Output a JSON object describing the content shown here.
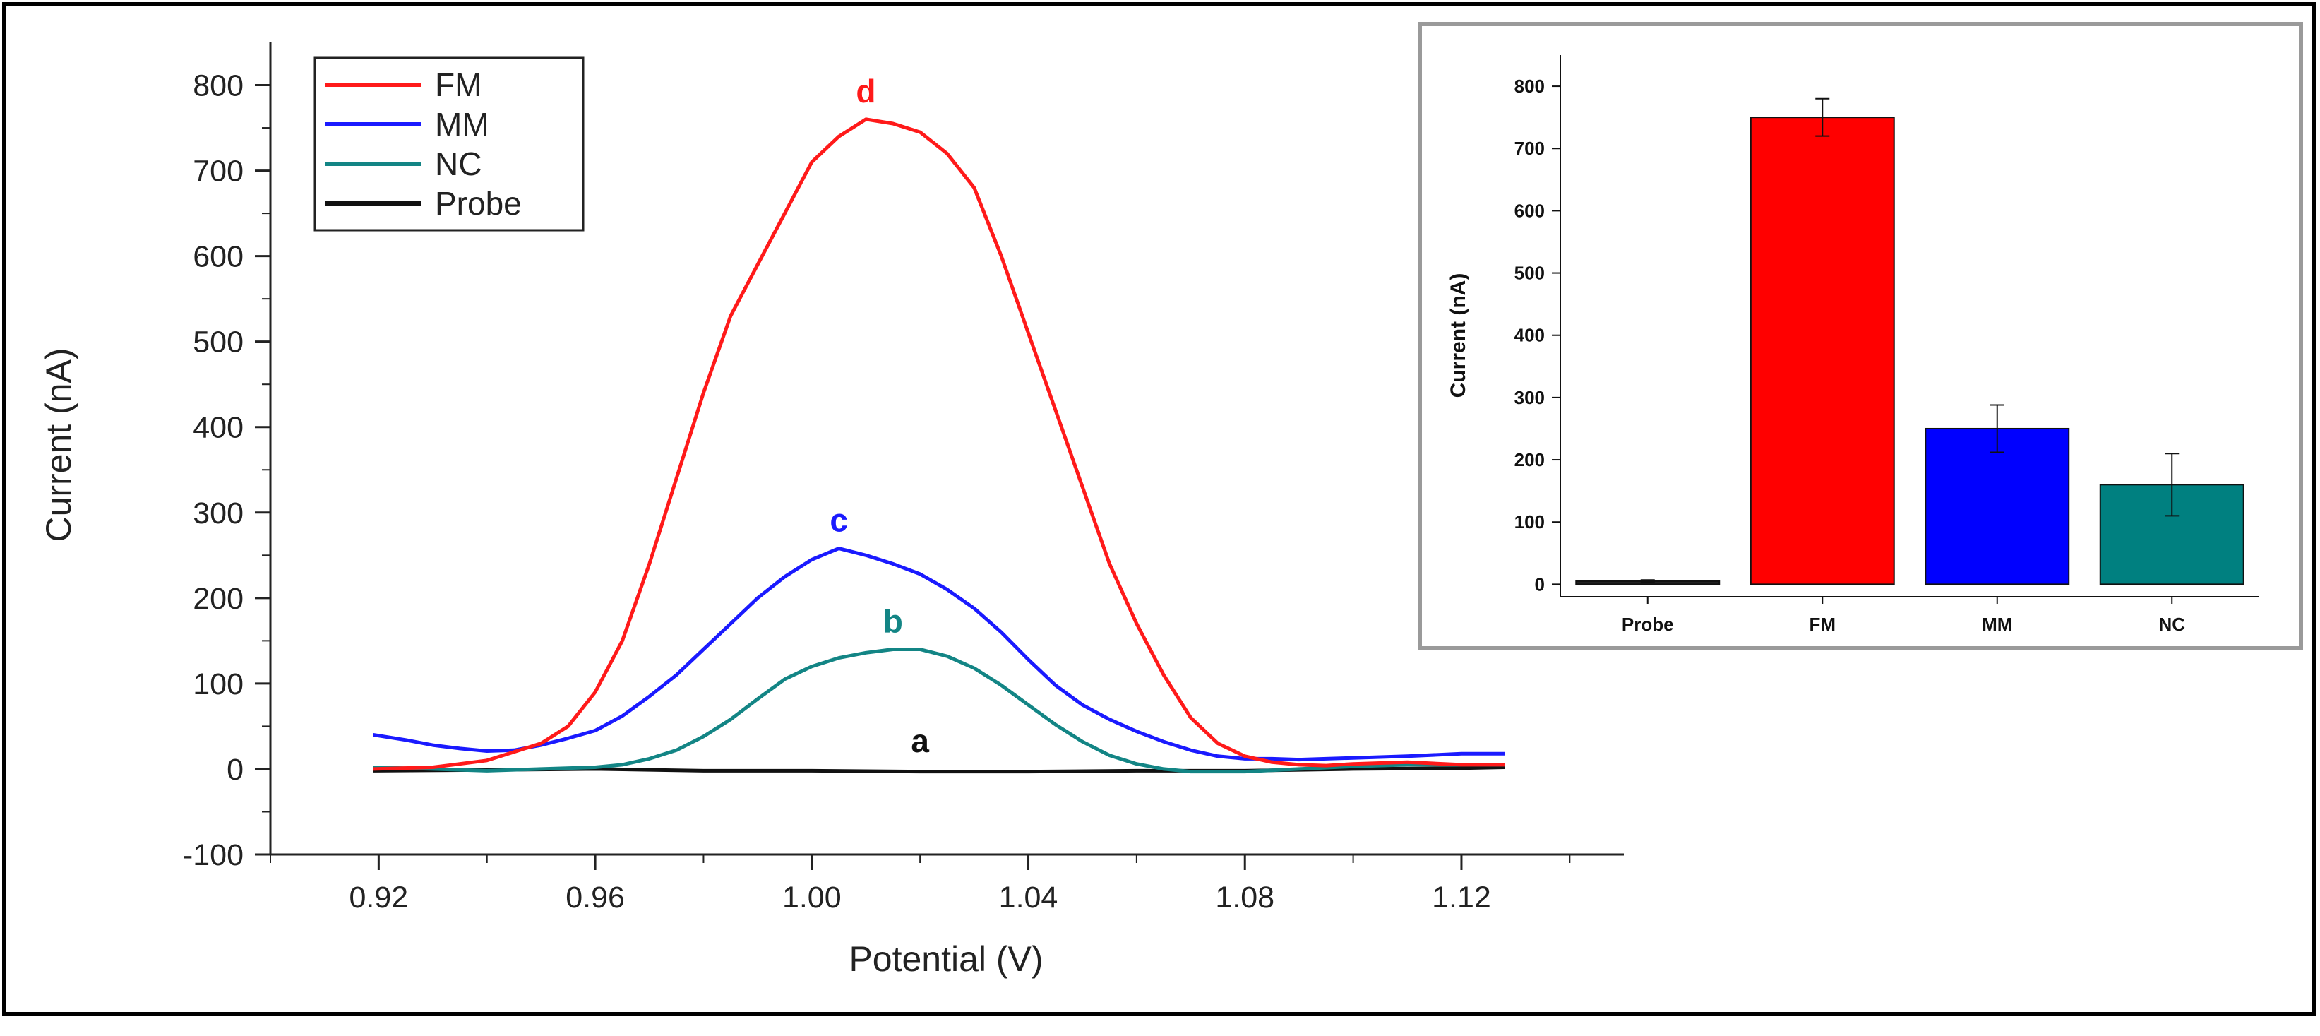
{
  "chart_data": [
    {
      "type": "line",
      "xlabel": "Potential (V)",
      "ylabel": "Current (nA)",
      "xlim": [
        0.9,
        1.15
      ],
      "ylim": [
        -100,
        850
      ],
      "xticks": [
        0.92,
        0.96,
        1.0,
        1.04,
        1.08,
        1.12
      ],
      "xtick_labels": [
        "0.92",
        "0.96",
        "1.00",
        "1.04",
        "1.08",
        "1.12"
      ],
      "yticks": [
        -100,
        0,
        100,
        200,
        300,
        400,
        500,
        600,
        700,
        800
      ],
      "ytick_labels": [
        "-100",
        "0",
        "100",
        "200",
        "300",
        "400",
        "500",
        "600",
        "700",
        "800"
      ],
      "legend": {
        "placement": "top-left"
      },
      "series": [
        {
          "name": "FM",
          "color": "#ff1a1a",
          "label": "d",
          "x": [
            0.919,
            0.93,
            0.94,
            0.945,
            0.95,
            0.955,
            0.96,
            0.965,
            0.97,
            0.975,
            0.98,
            0.985,
            0.99,
            0.995,
            1.0,
            1.005,
            1.01,
            1.015,
            1.02,
            1.025,
            1.03,
            1.035,
            1.04,
            1.045,
            1.05,
            1.055,
            1.06,
            1.065,
            1.07,
            1.075,
            1.08,
            1.085,
            1.09,
            1.095,
            1.1,
            1.11,
            1.12,
            1.128
          ],
          "y": [
            0,
            2,
            10,
            20,
            30,
            50,
            90,
            150,
            240,
            340,
            440,
            530,
            590,
            650,
            710,
            740,
            760,
            755,
            745,
            720,
            680,
            600,
            510,
            420,
            330,
            240,
            170,
            110,
            60,
            30,
            15,
            8,
            5,
            4,
            6,
            8,
            5,
            5
          ]
        },
        {
          "name": "MM",
          "color": "#1a1aff",
          "label": "c",
          "x": [
            0.919,
            0.925,
            0.93,
            0.935,
            0.94,
            0.945,
            0.95,
            0.955,
            0.96,
            0.965,
            0.97,
            0.975,
            0.98,
            0.985,
            0.99,
            0.995,
            1.0,
            1.005,
            1.01,
            1.015,
            1.02,
            1.025,
            1.03,
            1.035,
            1.04,
            1.045,
            1.05,
            1.055,
            1.06,
            1.065,
            1.07,
            1.075,
            1.08,
            1.085,
            1.09,
            1.095,
            1.1,
            1.11,
            1.12,
            1.128
          ],
          "y": [
            40,
            34,
            28,
            24,
            21,
            22,
            28,
            36,
            45,
            62,
            85,
            110,
            140,
            170,
            200,
            225,
            245,
            258,
            250,
            240,
            228,
            210,
            188,
            160,
            128,
            98,
            75,
            58,
            44,
            32,
            22,
            15,
            12,
            12,
            11,
            12,
            13,
            15,
            18,
            18
          ]
        },
        {
          "name": "NC",
          "color": "#138585",
          "label": "b",
          "x": [
            0.919,
            0.93,
            0.94,
            0.95,
            0.96,
            0.965,
            0.97,
            0.975,
            0.98,
            0.985,
            0.99,
            0.995,
            1.0,
            1.005,
            1.01,
            1.015,
            1.02,
            1.025,
            1.03,
            1.035,
            1.04,
            1.045,
            1.05,
            1.055,
            1.06,
            1.065,
            1.07,
            1.08,
            1.09,
            1.1,
            1.11,
            1.12,
            1.128
          ],
          "y": [
            2,
            0,
            -2,
            0,
            2,
            5,
            12,
            22,
            38,
            58,
            82,
            105,
            120,
            130,
            136,
            140,
            140,
            132,
            118,
            98,
            75,
            52,
            32,
            16,
            6,
            0,
            -3,
            -3,
            0,
            3,
            5,
            5,
            5
          ]
        },
        {
          "name": "Probe",
          "color": "#111111",
          "label": "a",
          "x": [
            0.919,
            0.94,
            0.96,
            0.98,
            1.0,
            1.02,
            1.04,
            1.06,
            1.08,
            1.1,
            1.12,
            1.128
          ],
          "y": [
            -2,
            -1,
            0,
            -2,
            -2,
            -3,
            -3,
            -2,
            -2,
            0,
            1,
            2
          ]
        }
      ]
    },
    {
      "type": "bar",
      "xlabel": "",
      "ylabel": "Current (nA)",
      "ylim": [
        -20,
        850
      ],
      "yticks": [
        0,
        100,
        200,
        300,
        400,
        500,
        600,
        700,
        800
      ],
      "ytick_labels": [
        "0",
        "100",
        "200",
        "300",
        "400",
        "500",
        "600",
        "700",
        "800"
      ],
      "categories": [
        "Probe",
        "FM",
        "MM",
        "NC"
      ],
      "values": [
        5,
        750,
        250,
        160
      ],
      "errors": [
        2,
        30,
        38,
        50
      ],
      "colors": [
        "#202020",
        "#ff0000",
        "#0000ff",
        "#008080"
      ]
    }
  ]
}
